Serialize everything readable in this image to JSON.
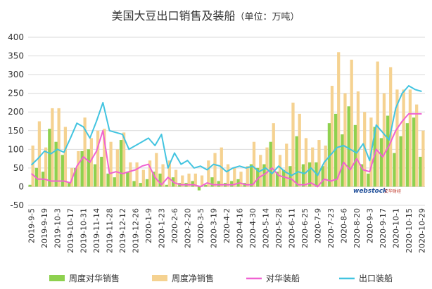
{
  "chart_data": {
    "type": "bar",
    "title": "美国大豆出口销售及装船",
    "subtitle": "（单位：万吨）",
    "ylim": [
      -50,
      400
    ],
    "yticks": [
      -50,
      0,
      50,
      100,
      150,
      200,
      250,
      300,
      350,
      400
    ],
    "grid": true,
    "legend_position": "bottom",
    "x": [
      "2019-9-5",
      "2019-9-12",
      "2019-9-19",
      "2019-9-26",
      "2019-10-3",
      "2019-10-10",
      "2019-10-17",
      "2019-10-24",
      "2019-10-31",
      "2019-11-7",
      "2019-11-14",
      "2019-11-21",
      "2019-11-28",
      "2019-12-5",
      "2019-12-12",
      "2019-12-19",
      "2019-12-26",
      "2020-1-2",
      "2020-1-9",
      "2020-1-16",
      "2020-1-23",
      "2020-1-30",
      "2020-2-6",
      "2020-2-13",
      "2020-2-20",
      "2020-2-27",
      "2020-3-5",
      "2020-3-12",
      "2020-3-19",
      "2020-3-26",
      "2020-4-2",
      "2020-4-9",
      "2020-4-16",
      "2020-4-23",
      "2020-4-30",
      "2020-5-7",
      "2020-5-14",
      "2020-5-21",
      "2020-5-28",
      "2020-6-4",
      "2020-6-11",
      "2020-6-18",
      "2020-6-25",
      "2020-7-2",
      "2020-7-9",
      "2020-7-16",
      "2020-7-23",
      "2020-7-30",
      "2020-8-6",
      "2020-8-13",
      "2020-8-20",
      "2020-8-27",
      "2020-9-3",
      "2020-9-10",
      "2020-9-17",
      "2020-9-24",
      "2020-10-1",
      "2020-10-8",
      "2020-10-15",
      "2020-10-22",
      "2020-10-29"
    ],
    "xtick_labels": [
      "2019-9-5",
      "2019-9-19",
      "2019-10-3",
      "2019-10-17",
      "2019-10-31",
      "2019-11-14",
      "2019-11-28",
      "2019-12-12",
      "2019-12-26",
      "2020-1-9",
      "2020-1-23",
      "2020-2-6",
      "2020-2-20",
      "2020-3-5",
      "2020-3-19",
      "2020-4-2",
      "2020-4-16",
      "2020-4-30",
      "2020-5-14",
      "2020-5-28",
      "2020-6-11",
      "2020-6-25",
      "2020-7-9",
      "2020-7-23",
      "2020-8-6",
      "2020-8-20",
      "2020-9-3",
      "2020-9-17",
      "2020-10-1",
      "2020-10-15",
      "2020-10-29"
    ],
    "series": [
      {
        "name": "周度对华销售",
        "kind": "bar",
        "color": "#8ed14f",
        "values": [
          5,
          50,
          40,
          155,
          120,
          85,
          10,
          50,
          95,
          100,
          60,
          80,
          35,
          25,
          125,
          40,
          15,
          10,
          20,
          40,
          35,
          5,
          25,
          10,
          10,
          15,
          -10,
          5,
          25,
          15,
          10,
          15,
          20,
          10,
          60,
          50,
          60,
          120,
          40,
          45,
          55,
          135,
          60,
          65,
          65,
          55,
          170,
          195,
          140,
          215,
          165,
          60,
          35,
          160,
          130,
          190,
          90,
          135,
          170,
          185,
          80
        ]
      },
      {
        "name": "周度净销售",
        "kind": "bar",
        "color": "#f5d291",
        "values": [
          110,
          175,
          105,
          210,
          210,
          160,
          50,
          95,
          185,
          130,
          150,
          155,
          120,
          100,
          145,
          65,
          65,
          45,
          70,
          90,
          60,
          70,
          45,
          30,
          35,
          35,
          30,
          70,
          90,
          105,
          60,
          50,
          40,
          55,
          120,
          85,
          105,
          170,
          85,
          115,
          225,
          195,
          130,
          105,
          125,
          110,
          270,
          360,
          250,
          340,
          255,
          200,
          185,
          335,
          250,
          320,
          260,
          260,
          260,
          220,
          150
        ]
      },
      {
        "name": "对华装船",
        "kind": "line",
        "color": "#f062d1",
        "values": [
          35,
          20,
          20,
          15,
          15,
          15,
          10,
          55,
          80,
          65,
          95,
          150,
          35,
          40,
          35,
          40,
          45,
          55,
          60,
          25,
          5,
          25,
          10,
          5,
          5,
          5,
          0,
          10,
          5,
          5,
          5,
          5,
          10,
          5,
          5,
          25,
          35,
          50,
          30,
          25,
          20,
          5,
          5,
          10,
          0,
          20,
          15,
          20,
          65,
          45,
          75,
          45,
          40,
          100,
          80,
          110,
          150,
          175,
          195,
          195,
          195
        ]
      },
      {
        "name": "出口装船",
        "kind": "line",
        "color": "#42c4e0",
        "values": [
          58,
          75,
          95,
          88,
          100,
          92,
          130,
          170,
          160,
          130,
          175,
          225,
          150,
          145,
          140,
          100,
          110,
          120,
          130,
          110,
          140,
          50,
          90,
          60,
          70,
          50,
          55,
          45,
          60,
          55,
          40,
          50,
          55,
          50,
          55,
          40,
          50,
          35,
          55,
          40,
          30,
          40,
          35,
          50,
          30,
          65,
          85,
          105,
          110,
          100,
          90,
          115,
          70,
          165,
          145,
          125,
          210,
          250,
          270,
          260,
          255
        ]
      }
    ]
  },
  "watermark": {
    "brand": "webstock",
    "cn": "文华财经"
  }
}
